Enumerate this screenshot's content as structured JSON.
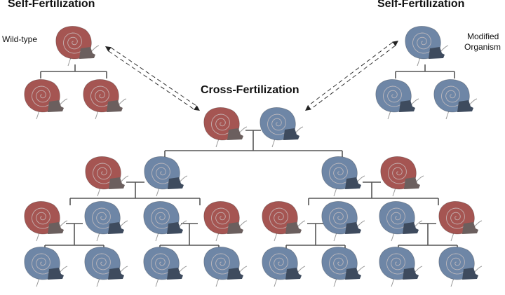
{
  "labels": {
    "left_title": "Self-Fertilization",
    "right_title": "Self-Fertilization",
    "center_title": "Cross-Fertilization",
    "wild_type": "Wild-type",
    "modified_line1": "Modified",
    "modified_line2": "Organism"
  },
  "colors": {
    "wild_shell": "#a55552",
    "wild_body": "#6b5f5e",
    "modified_shell": "#6e86a6",
    "modified_body": "#3e4b5e",
    "spiral": "#c9bfbf",
    "line": "#555555",
    "text": "#111111"
  },
  "icons": {
    "snail": "snail-icon",
    "arrow": "dashed-double-arrow"
  }
}
